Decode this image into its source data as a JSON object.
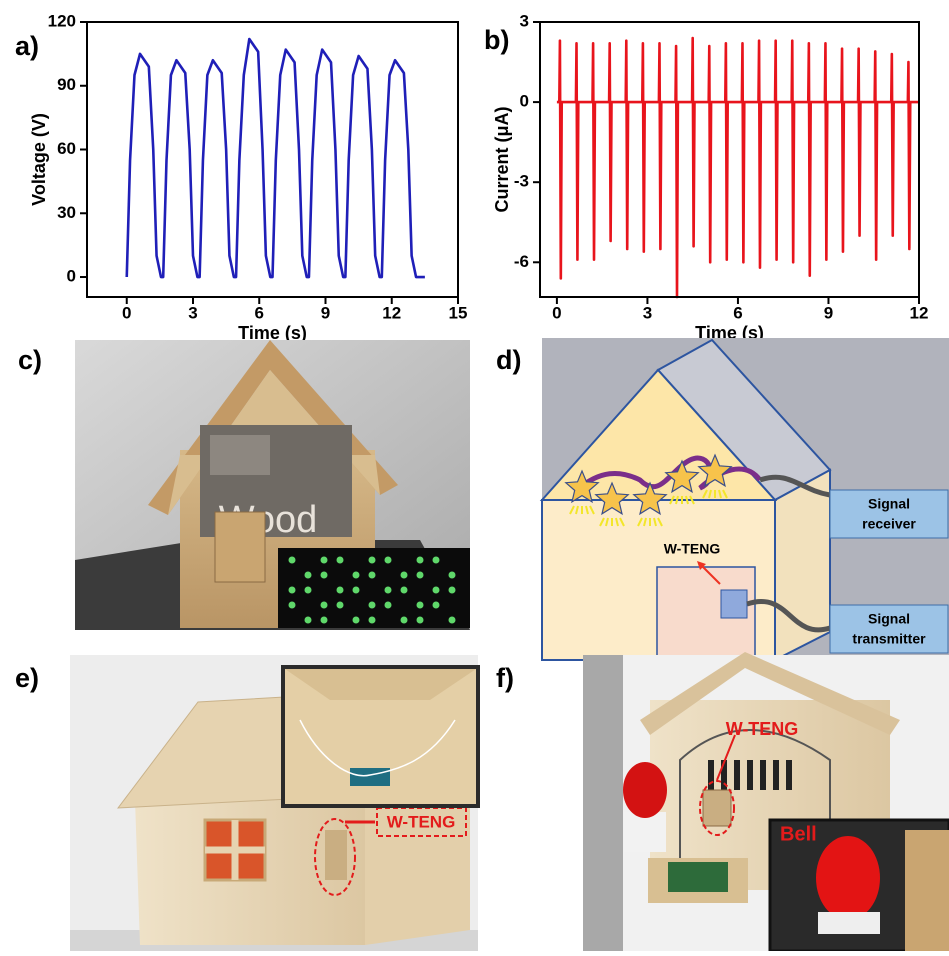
{
  "chart_data": [
    {
      "type": "line",
      "label": "a)",
      "x_label": "Time (s)",
      "y_label": "Voltage (V)",
      "color": "#1f1fb8",
      "xlim": [
        -1.8,
        15
      ],
      "xticks": [
        0,
        3,
        6,
        9,
        12,
        15
      ],
      "ylim": [
        -9.4,
        120
      ],
      "yticks": [
        0,
        30,
        60,
        90,
        120
      ],
      "x": [
        0,
        0.15,
        0.35,
        0.6,
        1.0,
        1.2,
        1.35,
        1.55,
        1.65,
        1.8,
        2.0,
        2.25,
        2.65,
        2.85,
        3.0,
        3.2,
        3.3,
        3.45,
        3.65,
        3.9,
        4.3,
        4.5,
        4.65,
        4.85,
        4.95,
        5.1,
        5.3,
        5.55,
        5.95,
        6.15,
        6.3,
        6.5,
        6.6,
        6.75,
        6.95,
        7.2,
        7.6,
        7.8,
        7.95,
        8.15,
        8.25,
        8.4,
        8.6,
        8.85,
        9.25,
        9.45,
        9.6,
        9.8,
        9.9,
        10.05,
        10.25,
        10.5,
        10.9,
        11.1,
        11.25,
        11.45,
        11.55,
        11.7,
        11.9,
        12.15,
        12.55,
        12.75,
        12.9,
        13.1,
        13.5
      ],
      "values": [
        0,
        55,
        95,
        105,
        99,
        60,
        10,
        0,
        0,
        55,
        95,
        102,
        96,
        60,
        10,
        0,
        0,
        55,
        95,
        102,
        96,
        60,
        10,
        0,
        0,
        55,
        95,
        112,
        106,
        60,
        10,
        0,
        0,
        55,
        95,
        107,
        101,
        60,
        10,
        0,
        0,
        55,
        95,
        107,
        101,
        60,
        10,
        0,
        0,
        55,
        95,
        104,
        98,
        60,
        10,
        0,
        0,
        55,
        95,
        102,
        96,
        60,
        10,
        0,
        0
      ]
    },
    {
      "type": "line",
      "label": "b)",
      "x_label": "Time (s)",
      "y_label": "Current (μA)",
      "color": "#e8141c",
      "xlim": [
        -0.56,
        12
      ],
      "xticks": [
        0,
        3,
        6,
        9,
        12
      ],
      "ylim": [
        -7.3,
        3
      ],
      "yticks": [
        -6,
        -3,
        0,
        3
      ],
      "x": [
        0,
        0.08,
        0.1,
        0.13,
        0.16,
        0.63,
        0.65,
        0.68,
        0.71,
        1.18,
        1.2,
        1.23,
        1.26,
        1.73,
        1.75,
        1.78,
        1.81,
        2.28,
        2.3,
        2.33,
        2.36,
        2.83,
        2.85,
        2.88,
        2.91,
        3.38,
        3.4,
        3.43,
        3.46,
        3.93,
        3.95,
        3.98,
        4.01,
        4.48,
        4.5,
        4.53,
        4.56,
        5.03,
        5.05,
        5.08,
        5.11,
        5.58,
        5.6,
        5.63,
        5.66,
        6.13,
        6.15,
        6.18,
        6.21,
        6.68,
        6.7,
        6.73,
        6.76,
        7.23,
        7.25,
        7.28,
        7.31,
        7.78,
        7.8,
        7.83,
        7.86,
        8.33,
        8.35,
        8.38,
        8.41,
        8.88,
        8.9,
        8.93,
        8.96,
        9.43,
        9.45,
        9.48,
        9.51,
        9.98,
        10.0,
        10.03,
        10.06,
        10.53,
        10.55,
        10.58,
        10.61,
        11.08,
        11.1,
        11.13,
        11.16,
        11.63,
        11.65,
        11.68,
        11.71,
        12
      ],
      "values": [
        0,
        0,
        2.3,
        -6.6,
        0,
        0,
        2.2,
        -5.9,
        0,
        0,
        2.2,
        -5.9,
        0,
        0,
        2.2,
        -5.2,
        0,
        0,
        2.3,
        -5.5,
        0,
        0,
        2.2,
        -5.6,
        0,
        0,
        2.2,
        -5.5,
        0,
        0,
        2.1,
        -7.3,
        0,
        0,
        2.4,
        -5.4,
        0,
        0,
        2.1,
        -6.0,
        0,
        0,
        2.2,
        -5.9,
        0,
        0,
        2.2,
        -6.0,
        0,
        0,
        2.3,
        -6.2,
        0,
        0,
        2.3,
        -5.9,
        0,
        0,
        2.3,
        -6.0,
        0,
        0,
        2.2,
        -6.5,
        0,
        0,
        2.2,
        -5.9,
        0,
        0,
        2.0,
        -5.6,
        0,
        0,
        2.0,
        -5.0,
        0,
        0,
        1.9,
        -5.9,
        0,
        0,
        1.8,
        -5.0,
        0,
        0,
        1.5,
        -5.5,
        0,
        0
      ]
    }
  ],
  "panels": {
    "c": {
      "label": "c)",
      "photo_text": "Wood"
    },
    "d": {
      "label": "d)",
      "device": "W-TENG",
      "receiver": [
        "Signal",
        "receiver"
      ],
      "transmitter": [
        "Signal",
        "transmitter"
      ]
    },
    "e": {
      "label": "e)",
      "device": "W-TENG"
    },
    "f": {
      "label": "f)",
      "device": "W-TENG",
      "inset": "Bell"
    }
  }
}
